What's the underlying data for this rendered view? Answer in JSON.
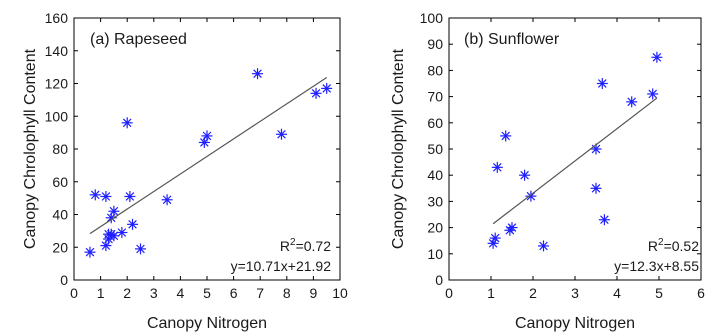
{
  "chart_data": [
    {
      "type": "scatter",
      "title": "(a) Rapeseed",
      "xlabel": "Canopy Nitrogen",
      "ylabel": "Canopy Chrolophyll Content",
      "xlim": [
        0,
        10
      ],
      "ylim": [
        0,
        160
      ],
      "xticks": [
        0,
        1,
        2,
        3,
        4,
        5,
        6,
        7,
        8,
        9,
        10
      ],
      "yticks": [
        0,
        20,
        40,
        60,
        80,
        100,
        120,
        140,
        160
      ],
      "x": [
        0.6,
        0.8,
        1.2,
        1.2,
        1.3,
        1.3,
        1.4,
        1.4,
        1.5,
        1.5,
        1.8,
        2.0,
        2.1,
        2.2,
        2.5,
        3.5,
        4.9,
        5.0,
        6.9,
        7.8,
        9.1,
        9.5
      ],
      "y": [
        17,
        52,
        51,
        21,
        28,
        25,
        38,
        28,
        27,
        42,
        29,
        96,
        51,
        34,
        19,
        49,
        84,
        88,
        126,
        89,
        114,
        117
      ],
      "fit_line": {
        "slope": 10.71,
        "intercept": 21.92,
        "x_range": [
          0.6,
          9.5
        ]
      },
      "annotations": {
        "r2_prefix": "R",
        "r2_sup": "2",
        "r2_value": "=0.72",
        "equation": "y=10.71x+21.92"
      },
      "marker": "asterisk",
      "marker_color": "#1f1fff",
      "line_color": "#555555",
      "grid": false
    },
    {
      "type": "scatter",
      "title": "(b) Sunflower",
      "xlabel": "Canopy Nitrogen",
      "ylabel": "Canopy Chrolophyll Content",
      "xlim": [
        0,
        6
      ],
      "ylim": [
        0,
        100
      ],
      "xticks": [
        0,
        1,
        2,
        3,
        4,
        5,
        6
      ],
      "yticks": [
        0,
        10,
        20,
        30,
        40,
        50,
        60,
        70,
        80,
        90,
        100
      ],
      "x": [
        1.05,
        1.1,
        1.15,
        1.35,
        1.45,
        1.5,
        1.8,
        1.95,
        2.25,
        3.5,
        3.5,
        3.65,
        3.7,
        4.35,
        4.85,
        4.95
      ],
      "y": [
        14,
        16,
        43,
        55,
        19,
        20,
        40,
        32,
        13,
        50,
        35,
        75,
        23,
        68,
        71,
        85
      ],
      "fit_line": {
        "slope": 12.3,
        "intercept": 8.55,
        "x_range": [
          1.05,
          4.95
        ]
      },
      "annotations": {
        "r2_prefix": "R",
        "r2_sup": "2",
        "r2_value": "=0.52",
        "equation": "y=12.3x+8.55"
      },
      "marker": "asterisk",
      "marker_color": "#1f1fff",
      "line_color": "#555555",
      "grid": false
    }
  ]
}
